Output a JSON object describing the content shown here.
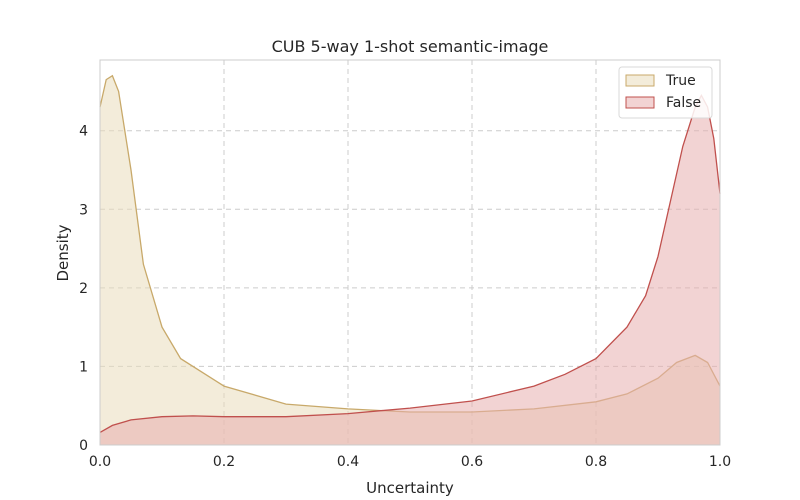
{
  "chart_data": {
    "type": "area",
    "title": "CUB 5-way 1-shot semantic-image",
    "xlabel": "Uncertainty",
    "ylabel": "Density",
    "xlim": [
      0,
      1
    ],
    "ylim": [
      0,
      4.9
    ],
    "xticks": [
      "0.0",
      "0.2",
      "0.4",
      "0.6",
      "0.8",
      "1.0"
    ],
    "yticks": [
      "0",
      "1",
      "2",
      "3",
      "4"
    ],
    "grid": true,
    "legend_position": "top-right",
    "series": [
      {
        "name": "True",
        "color": "#c8a96a",
        "fill": "#e9dcbb",
        "x": [
          0.0,
          0.01,
          0.02,
          0.03,
          0.05,
          0.07,
          0.1,
          0.13,
          0.2,
          0.3,
          0.4,
          0.5,
          0.6,
          0.7,
          0.8,
          0.85,
          0.9,
          0.93,
          0.96,
          0.98,
          1.0
        ],
        "y": [
          4.3,
          4.65,
          4.7,
          4.5,
          3.5,
          2.3,
          1.5,
          1.1,
          0.75,
          0.52,
          0.46,
          0.42,
          0.42,
          0.46,
          0.55,
          0.65,
          0.85,
          1.05,
          1.14,
          1.05,
          0.75
        ]
      },
      {
        "name": "False",
        "color": "#c0504d",
        "fill": "#e7aeae",
        "x": [
          0.0,
          0.02,
          0.05,
          0.1,
          0.15,
          0.2,
          0.3,
          0.4,
          0.5,
          0.6,
          0.7,
          0.75,
          0.8,
          0.85,
          0.88,
          0.9,
          0.92,
          0.94,
          0.96,
          0.97,
          0.98,
          0.99,
          1.0
        ],
        "y": [
          0.16,
          0.25,
          0.32,
          0.36,
          0.37,
          0.36,
          0.36,
          0.4,
          0.47,
          0.56,
          0.75,
          0.9,
          1.1,
          1.5,
          1.9,
          2.4,
          3.1,
          3.8,
          4.3,
          4.45,
          4.3,
          3.9,
          3.2
        ]
      }
    ]
  }
}
